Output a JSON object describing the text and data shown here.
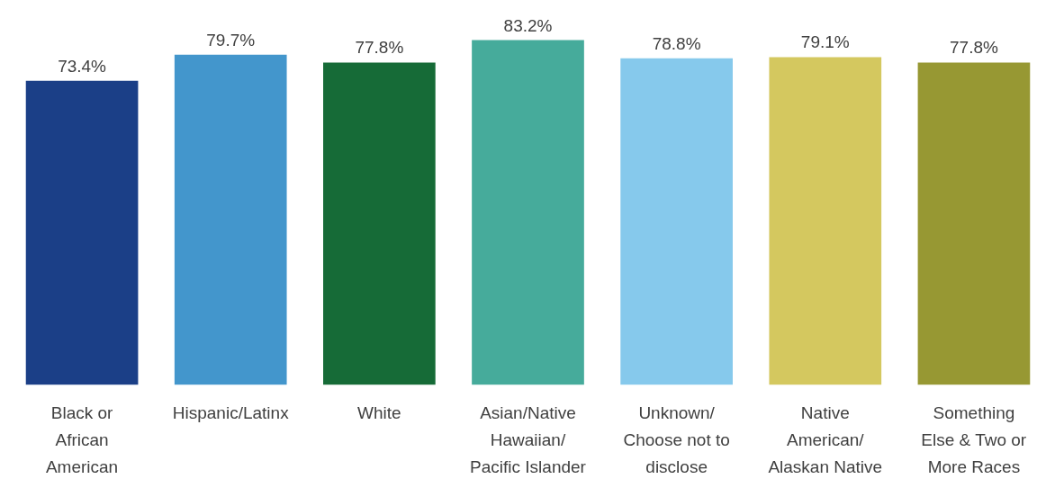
{
  "chart_data": {
    "type": "bar",
    "categories": [
      "Black or\nAfrican\nAmerican",
      "Hispanic/Latinx",
      "White",
      "Asian/Native\nHawaiian/\nPacific Islander",
      "Unknown/\nChoose not to\ndisclose",
      "Native\nAmerican/\nAlaskan Native",
      "Something\nElse & Two or\nMore Races"
    ],
    "values": [
      73.4,
      79.7,
      77.8,
      83.2,
      78.8,
      79.1,
      77.8
    ],
    "colors": [
      "#1b3f87",
      "#4396cc",
      "#166b37",
      "#46ab9b",
      "#86c9ec",
      "#d4c85f",
      "#979833"
    ],
    "value_labels": [
      "73.4%",
      "79.7%",
      "77.8%",
      "83.2%",
      "78.8%",
      "79.1%",
      "77.8%"
    ],
    "tick_labels": "x"
  }
}
